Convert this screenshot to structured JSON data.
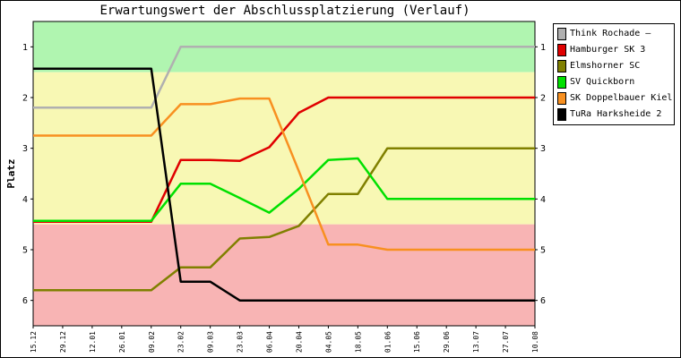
{
  "chart_data": {
    "type": "line",
    "title": "Erwartungswert der Abschlussplatzierung (Verlauf)",
    "ylabel": "Platz",
    "xlabel": "",
    "x": [
      "15.12",
      "29.12",
      "12.01",
      "26.01",
      "09.02",
      "23.02",
      "09.03",
      "23.03",
      "06.04",
      "20.04",
      "04.05",
      "18.05",
      "01.06",
      "15.06",
      "29.06",
      "13.07",
      "27.07",
      "10.08"
    ],
    "yticks": [
      "1",
      "2",
      "3",
      "4",
      "5",
      "6"
    ],
    "ylim": [
      0.5,
      6.5
    ],
    "y_inverted": true,
    "grid": false,
    "legend_position": "right",
    "bands": [
      {
        "from": 0.5,
        "to": 1.5,
        "color": "#b0f5b0"
      },
      {
        "from": 1.5,
        "to": 4.5,
        "color": "#f8f8b4"
      },
      {
        "from": 4.5,
        "to": 6.5,
        "color": "#f8b4b4"
      }
    ],
    "series": [
      {
        "name": "Think Rochade –",
        "color": "#b0b0b0",
        "values": [
          2.2,
          2.2,
          2.2,
          2.2,
          2.2,
          1.0,
          1.0,
          1.0,
          1.0,
          1.0,
          1.0,
          1.0,
          1.0,
          1.0,
          1.0,
          1.0,
          1.0,
          1.0
        ]
      },
      {
        "name": "Hamburger SK 3",
        "color": "#e00000",
        "values": [
          4.45,
          4.45,
          4.45,
          4.45,
          4.45,
          3.23,
          3.23,
          3.25,
          2.98,
          2.3,
          2.0,
          2.0,
          2.0,
          2.0,
          2.0,
          2.0,
          2.0,
          2.0
        ]
      },
      {
        "name": "Elmshorner SC",
        "color": "#808000",
        "values": [
          5.8,
          5.8,
          5.8,
          5.8,
          5.8,
          5.35,
          5.35,
          4.78,
          4.75,
          4.53,
          3.9,
          3.9,
          3.0,
          3.0,
          3.0,
          3.0,
          3.0,
          3.0
        ]
      },
      {
        "name": "SV Quickborn",
        "color": "#00e000",
        "values": [
          4.43,
          4.43,
          4.43,
          4.43,
          4.43,
          3.7,
          3.7,
          3.98,
          4.27,
          3.8,
          3.23,
          3.2,
          4.0,
          4.0,
          4.0,
          4.0,
          4.0,
          4.0
        ]
      },
      {
        "name": "SK Doppelbauer Kiel",
        "color": "#f89020",
        "values": [
          2.75,
          2.75,
          2.75,
          2.75,
          2.75,
          2.13,
          2.13,
          2.02,
          2.02,
          3.45,
          4.9,
          4.9,
          5.0,
          5.0,
          5.0,
          5.0,
          5.0,
          5.0
        ]
      },
      {
        "name": "TuRa Harksheide 2",
        "color": "#000000",
        "values": [
          1.43,
          1.43,
          1.43,
          1.43,
          1.43,
          5.63,
          5.63,
          6.0,
          6.0,
          6.0,
          6.0,
          6.0,
          6.0,
          6.0,
          6.0,
          6.0,
          6.0,
          6.0
        ]
      }
    ]
  }
}
